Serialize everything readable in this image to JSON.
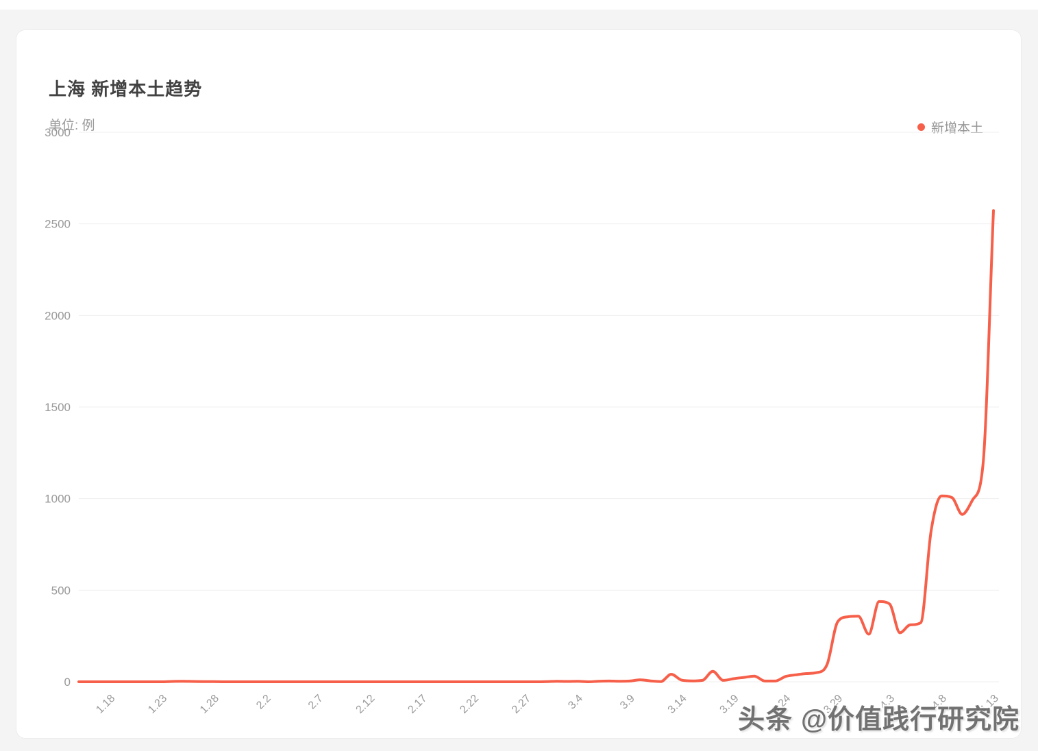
{
  "header": {
    "title": "上海 新增本土趋势",
    "unit_label": "单位: 例"
  },
  "legend": {
    "label": "新增本土",
    "color": "#f6604a"
  },
  "watermark": {
    "text": "头条 @价值践行研究院"
  },
  "chart_data": {
    "type": "line",
    "title": "上海 新增本土趋势",
    "unit": "例",
    "smooth": true,
    "grid": "horizontal-only",
    "grid_color": "#efeff0",
    "axis_label_color": "#999999",
    "legend_position": "top-right",
    "ylim": [
      0,
      3000
    ],
    "y_ticks": [
      0,
      500,
      1000,
      1500,
      2000,
      2500,
      3000
    ],
    "x_tick_start_index": 3,
    "x_tick_every": 5,
    "x_tick_labels": [
      "1.18",
      "1.23",
      "1.28",
      "2.2",
      "2.7",
      "2.12",
      "2.17",
      "2.22",
      "2.27",
      "3.4",
      "3.9",
      "3.14",
      "3.19",
      "3.24",
      "3.29",
      "4.3",
      "4.8",
      "4.13"
    ],
    "x": [
      "1.15",
      "1.16",
      "1.17",
      "1.18",
      "1.19",
      "1.20",
      "1.21",
      "1.22",
      "1.23",
      "1.24",
      "1.25",
      "1.26",
      "1.27",
      "1.28",
      "1.29",
      "1.30",
      "1.31",
      "2.1",
      "2.2",
      "2.3",
      "2.4",
      "2.5",
      "2.6",
      "2.7",
      "2.8",
      "2.9",
      "2.10",
      "2.11",
      "2.12",
      "2.13",
      "2.14",
      "2.15",
      "2.16",
      "2.17",
      "2.18",
      "2.19",
      "2.20",
      "2.21",
      "2.22",
      "2.23",
      "2.24",
      "2.25",
      "2.26",
      "2.27",
      "2.28",
      "3.1",
      "3.2",
      "3.3",
      "3.4",
      "3.5",
      "3.6",
      "3.7",
      "3.8",
      "3.9",
      "3.10",
      "3.11",
      "3.12",
      "3.13",
      "3.14",
      "3.15",
      "3.16",
      "3.17",
      "3.18",
      "3.19",
      "3.20",
      "3.21",
      "3.22",
      "3.23",
      "3.24",
      "3.25",
      "3.26",
      "3.27",
      "3.28",
      "3.29",
      "3.30",
      "3.31",
      "4.1",
      "4.2",
      "4.3",
      "4.4",
      "4.5",
      "4.6",
      "4.7",
      "4.8",
      "4.9",
      "4.10",
      "4.11",
      "4.12",
      "4.13"
    ],
    "series": [
      {
        "name": "新增本土",
        "color": "#f6604a",
        "values": [
          0,
          0,
          0,
          0,
          0,
          0,
          0,
          0,
          0,
          2,
          3,
          2,
          1,
          1,
          0,
          0,
          0,
          0,
          0,
          0,
          0,
          0,
          0,
          0,
          0,
          0,
          0,
          0,
          0,
          0,
          0,
          0,
          0,
          0,
          0,
          0,
          0,
          0,
          0,
          0,
          0,
          0,
          0,
          0,
          0,
          1,
          3,
          2,
          3,
          0,
          3,
          4,
          3,
          4,
          11,
          5,
          1,
          41,
          9,
          5,
          8,
          57,
          8,
          17,
          24,
          31,
          4,
          4,
          29,
          38,
          45,
          50,
          96,
          326,
          355,
          358,
          260,
          438,
          425,
          268,
          311,
          322,
          824,
          1015,
          1006,
          914,
          994,
          1189,
          2573
        ]
      }
    ]
  }
}
